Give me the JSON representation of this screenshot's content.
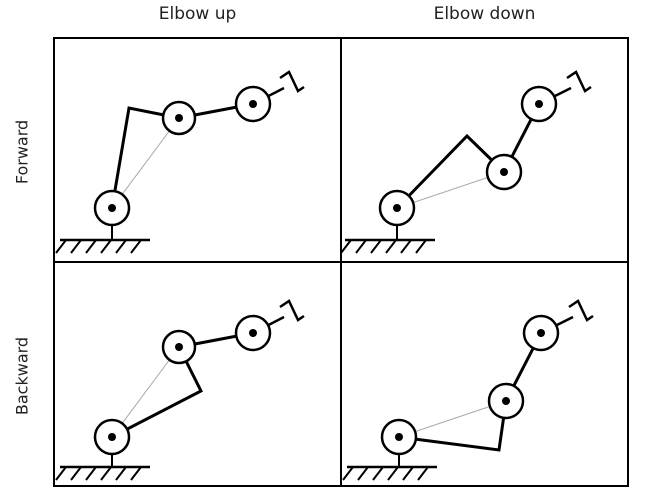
{
  "columns": {
    "left": "Elbow up",
    "right": "Elbow down"
  },
  "rows": {
    "top": "Forward",
    "bottom": "Backward"
  },
  "panels": [
    {
      "id": "forward-elbow-up"
    },
    {
      "id": "forward-elbow-down"
    },
    {
      "id": "backward-elbow-up"
    },
    {
      "id": "backward-elbow-down"
    }
  ]
}
